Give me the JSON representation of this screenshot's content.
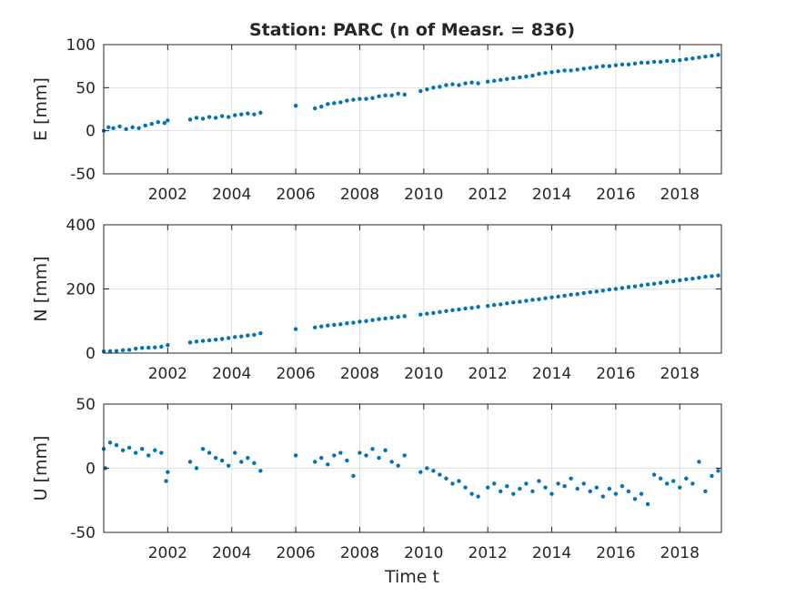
{
  "figure": {
    "title": "Station: PARC (n of Measr. = 836)",
    "xlabel": "Time t"
  },
  "colors": {
    "marker": "#0072bd",
    "grid": "#dfdfdf",
    "axis": "#262626"
  },
  "chart_data": [
    {
      "type": "scatter",
      "ylabel": "E [mm]",
      "xlim": [
        2000.0,
        2019.3
      ],
      "ylim": [
        -50,
        100
      ],
      "xticks": [
        2002,
        2004,
        2006,
        2008,
        2010,
        2012,
        2014,
        2016,
        2018
      ],
      "yticks": [
        -50,
        0,
        50,
        100
      ],
      "grid": true,
      "series": [
        {
          "values": [
            [
              2000.0,
              0
            ],
            [
              2000.15,
              4
            ],
            [
              2000.3,
              3
            ],
            [
              2000.5,
              5
            ],
            [
              2000.7,
              2
            ],
            [
              2000.9,
              4
            ],
            [
              2001.1,
              3
            ],
            [
              2001.3,
              6
            ],
            [
              2001.5,
              8
            ],
            [
              2001.7,
              10
            ],
            [
              2001.9,
              9
            ],
            [
              2002.0,
              12
            ],
            [
              2002.7,
              13
            ],
            [
              2002.9,
              15
            ],
            [
              2003.1,
              14
            ],
            [
              2003.3,
              16
            ],
            [
              2003.5,
              15
            ],
            [
              2003.7,
              17
            ],
            [
              2003.9,
              16
            ],
            [
              2004.1,
              18
            ],
            [
              2004.3,
              19
            ],
            [
              2004.5,
              20
            ],
            [
              2004.7,
              19
            ],
            [
              2004.9,
              21
            ],
            [
              2006.0,
              29
            ],
            [
              2006.6,
              26
            ],
            [
              2006.8,
              28
            ],
            [
              2007.0,
              31
            ],
            [
              2007.2,
              32
            ],
            [
              2007.4,
              33
            ],
            [
              2007.6,
              35
            ],
            [
              2007.8,
              36
            ],
            [
              2008.0,
              37
            ],
            [
              2008.2,
              37
            ],
            [
              2008.4,
              38
            ],
            [
              2008.6,
              40
            ],
            [
              2008.8,
              41
            ],
            [
              2009.0,
              41
            ],
            [
              2009.2,
              43
            ],
            [
              2009.4,
              42
            ],
            [
              2009.9,
              46
            ],
            [
              2010.1,
              48
            ],
            [
              2010.3,
              50
            ],
            [
              2010.5,
              51
            ],
            [
              2010.7,
              53
            ],
            [
              2010.9,
              54
            ],
            [
              2011.1,
              53
            ],
            [
              2011.3,
              55
            ],
            [
              2011.5,
              56
            ],
            [
              2011.7,
              55
            ],
            [
              2012.0,
              57
            ],
            [
              2012.2,
              58
            ],
            [
              2012.4,
              59
            ],
            [
              2012.6,
              60
            ],
            [
              2012.8,
              61
            ],
            [
              2013.0,
              62
            ],
            [
              2013.2,
              63
            ],
            [
              2013.4,
              64
            ],
            [
              2013.6,
              66
            ],
            [
              2013.8,
              67
            ],
            [
              2014.0,
              68
            ],
            [
              2014.2,
              69
            ],
            [
              2014.4,
              70
            ],
            [
              2014.6,
              70
            ],
            [
              2014.8,
              71
            ],
            [
              2015.0,
              72
            ],
            [
              2015.2,
              73
            ],
            [
              2015.4,
              74
            ],
            [
              2015.6,
              75
            ],
            [
              2015.8,
              75
            ],
            [
              2016.0,
              76
            ],
            [
              2016.2,
              77
            ],
            [
              2016.4,
              77
            ],
            [
              2016.6,
              78
            ],
            [
              2016.8,
              79
            ],
            [
              2017.0,
              79
            ],
            [
              2017.2,
              80
            ],
            [
              2017.4,
              80
            ],
            [
              2017.6,
              81
            ],
            [
              2017.8,
              81
            ],
            [
              2018.0,
              82
            ],
            [
              2018.2,
              83
            ],
            [
              2018.4,
              84
            ],
            [
              2018.6,
              85
            ],
            [
              2018.8,
              86
            ],
            [
              2019.0,
              87
            ],
            [
              2019.2,
              88
            ]
          ]
        }
      ]
    },
    {
      "type": "scatter",
      "ylabel": "N [mm]",
      "xlim": [
        2000.0,
        2019.3
      ],
      "ylim": [
        0,
        400
      ],
      "xticks": [
        2002,
        2004,
        2006,
        2008,
        2010,
        2012,
        2014,
        2016,
        2018
      ],
      "yticks": [
        0,
        200,
        400
      ],
      "grid": true,
      "series": [
        {
          "values": [
            [
              2000.0,
              5
            ],
            [
              2000.2,
              6
            ],
            [
              2000.4,
              7
            ],
            [
              2000.6,
              9
            ],
            [
              2000.8,
              10
            ],
            [
              2001.0,
              14
            ],
            [
              2001.2,
              16
            ],
            [
              2001.4,
              17
            ],
            [
              2001.6,
              18
            ],
            [
              2001.8,
              20
            ],
            [
              2002.0,
              25
            ],
            [
              2002.7,
              33
            ],
            [
              2002.9,
              36
            ],
            [
              2003.1,
              38
            ],
            [
              2003.3,
              40
            ],
            [
              2003.5,
              42
            ],
            [
              2003.7,
              44
            ],
            [
              2003.9,
              47
            ],
            [
              2004.1,
              50
            ],
            [
              2004.3,
              52
            ],
            [
              2004.5,
              55
            ],
            [
              2004.7,
              57
            ],
            [
              2004.9,
              62
            ],
            [
              2006.0,
              75
            ],
            [
              2006.6,
              80
            ],
            [
              2006.8,
              83
            ],
            [
              2007.0,
              86
            ],
            [
              2007.2,
              88
            ],
            [
              2007.4,
              90
            ],
            [
              2007.6,
              93
            ],
            [
              2007.8,
              95
            ],
            [
              2008.0,
              98
            ],
            [
              2008.2,
              100
            ],
            [
              2008.4,
              103
            ],
            [
              2008.6,
              106
            ],
            [
              2008.8,
              108
            ],
            [
              2009.0,
              110
            ],
            [
              2009.2,
              113
            ],
            [
              2009.4,
              115
            ],
            [
              2009.9,
              120
            ],
            [
              2010.1,
              123
            ],
            [
              2010.3,
              125
            ],
            [
              2010.5,
              128
            ],
            [
              2010.7,
              131
            ],
            [
              2010.9,
              134
            ],
            [
              2011.1,
              136
            ],
            [
              2011.3,
              139
            ],
            [
              2011.5,
              141
            ],
            [
              2011.7,
              144
            ],
            [
              2012.0,
              147
            ],
            [
              2012.2,
              150
            ],
            [
              2012.4,
              152
            ],
            [
              2012.6,
              155
            ],
            [
              2012.8,
              158
            ],
            [
              2013.0,
              160
            ],
            [
              2013.2,
              163
            ],
            [
              2013.4,
              166
            ],
            [
              2013.6,
              168
            ],
            [
              2013.8,
              171
            ],
            [
              2014.0,
              174
            ],
            [
              2014.2,
              176
            ],
            [
              2014.4,
              179
            ],
            [
              2014.6,
              182
            ],
            [
              2014.8,
              184
            ],
            [
              2015.0,
              187
            ],
            [
              2015.2,
              190
            ],
            [
              2015.4,
              192
            ],
            [
              2015.6,
              195
            ],
            [
              2015.8,
              198
            ],
            [
              2016.0,
              200
            ],
            [
              2016.2,
              203
            ],
            [
              2016.4,
              206
            ],
            [
              2016.6,
              208
            ],
            [
              2016.8,
              211
            ],
            [
              2017.0,
              214
            ],
            [
              2017.2,
              216
            ],
            [
              2017.4,
              219
            ],
            [
              2017.6,
              222
            ],
            [
              2017.8,
              224
            ],
            [
              2018.0,
              227
            ],
            [
              2018.2,
              230
            ],
            [
              2018.4,
              232
            ],
            [
              2018.6,
              235
            ],
            [
              2018.8,
              238
            ],
            [
              2019.0,
              240
            ],
            [
              2019.2,
              242
            ]
          ]
        }
      ]
    },
    {
      "type": "scatter",
      "ylabel": "U [mm]",
      "xlim": [
        2000.0,
        2019.3
      ],
      "ylim": [
        -50,
        50
      ],
      "xticks": [
        2002,
        2004,
        2006,
        2008,
        2010,
        2012,
        2014,
        2016,
        2018
      ],
      "yticks": [
        -50,
        0,
        50
      ],
      "grid": true,
      "series": [
        {
          "values": [
            [
              2000.0,
              15
            ],
            [
              2000.05,
              0
            ],
            [
              2000.2,
              20
            ],
            [
              2000.4,
              18
            ],
            [
              2000.6,
              14
            ],
            [
              2000.8,
              16
            ],
            [
              2001.0,
              12
            ],
            [
              2001.2,
              15
            ],
            [
              2001.4,
              10
            ],
            [
              2001.6,
              14
            ],
            [
              2001.8,
              12
            ],
            [
              2001.95,
              -10
            ],
            [
              2002.0,
              -3
            ],
            [
              2002.7,
              5
            ],
            [
              2002.9,
              0
            ],
            [
              2003.1,
              15
            ],
            [
              2003.3,
              12
            ],
            [
              2003.5,
              8
            ],
            [
              2003.7,
              6
            ],
            [
              2003.9,
              2
            ],
            [
              2004.1,
              12
            ],
            [
              2004.3,
              5
            ],
            [
              2004.5,
              8
            ],
            [
              2004.7,
              4
            ],
            [
              2004.9,
              -2
            ],
            [
              2006.0,
              10
            ],
            [
              2006.6,
              5
            ],
            [
              2006.8,
              8
            ],
            [
              2007.0,
              3
            ],
            [
              2007.2,
              10
            ],
            [
              2007.4,
              12
            ],
            [
              2007.6,
              6
            ],
            [
              2007.8,
              -6
            ],
            [
              2008.0,
              12
            ],
            [
              2008.2,
              10
            ],
            [
              2008.4,
              15
            ],
            [
              2008.6,
              8
            ],
            [
              2008.8,
              14
            ],
            [
              2009.0,
              5
            ],
            [
              2009.2,
              2
            ],
            [
              2009.4,
              10
            ],
            [
              2009.9,
              -3
            ],
            [
              2010.1,
              0
            ],
            [
              2010.3,
              -2
            ],
            [
              2010.5,
              -5
            ],
            [
              2010.7,
              -8
            ],
            [
              2010.9,
              -12
            ],
            [
              2011.1,
              -10
            ],
            [
              2011.3,
              -15
            ],
            [
              2011.5,
              -20
            ],
            [
              2011.7,
              -22
            ],
            [
              2012.0,
              -15
            ],
            [
              2012.2,
              -12
            ],
            [
              2012.4,
              -18
            ],
            [
              2012.6,
              -14
            ],
            [
              2012.8,
              -20
            ],
            [
              2013.0,
              -16
            ],
            [
              2013.2,
              -12
            ],
            [
              2013.4,
              -18
            ],
            [
              2013.6,
              -10
            ],
            [
              2013.8,
              -15
            ],
            [
              2014.0,
              -20
            ],
            [
              2014.2,
              -12
            ],
            [
              2014.4,
              -14
            ],
            [
              2014.6,
              -8
            ],
            [
              2014.8,
              -16
            ],
            [
              2015.0,
              -12
            ],
            [
              2015.2,
              -18
            ],
            [
              2015.4,
              -15
            ],
            [
              2015.6,
              -22
            ],
            [
              2015.8,
              -16
            ],
            [
              2016.0,
              -20
            ],
            [
              2016.2,
              -14
            ],
            [
              2016.4,
              -18
            ],
            [
              2016.6,
              -24
            ],
            [
              2016.8,
              -20
            ],
            [
              2017.0,
              -28
            ],
            [
              2017.2,
              -5
            ],
            [
              2017.4,
              -8
            ],
            [
              2017.6,
              -12
            ],
            [
              2017.8,
              -10
            ],
            [
              2018.0,
              -15
            ],
            [
              2018.2,
              -8
            ],
            [
              2018.4,
              -12
            ],
            [
              2018.6,
              5
            ],
            [
              2018.8,
              -18
            ],
            [
              2019.0,
              -6
            ],
            [
              2019.2,
              -2
            ]
          ]
        }
      ]
    }
  ]
}
